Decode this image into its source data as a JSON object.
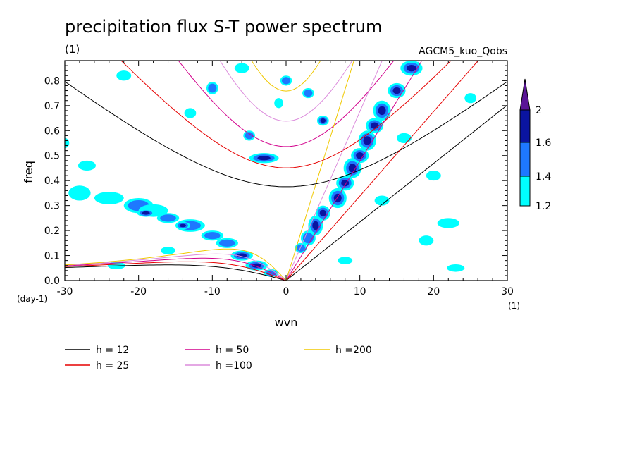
{
  "chart_data": {
    "type": "heatmap",
    "title": "precipitation flux S-T power spectrum",
    "subtitle_left": "(1)",
    "subtitle_right": "AGCM5_kuo_Qobs",
    "xlabel": "wvn",
    "ylabel": "freq",
    "x_unit": "(1)",
    "y_unit": "(day-1)",
    "xlim": [
      -30,
      30
    ],
    "ylim": [
      0,
      0.88
    ],
    "x_ticks": [
      "-30",
      "-20",
      "-10",
      "0",
      "10",
      "20",
      "30"
    ],
    "y_ticks": [
      "0.0",
      "0.1",
      "0.2",
      "0.3",
      "0.4",
      "0.5",
      "0.6",
      "0.7",
      "0.8"
    ],
    "colorbar": {
      "levels": [
        "1.2",
        "1.4",
        "1.6",
        "2"
      ],
      "colors": [
        "#00ffff",
        "#1e78ff",
        "#0a14a0",
        "#5a1496"
      ]
    },
    "series": [
      {
        "name": "h = 12",
        "color": "#000000",
        "h": 12
      },
      {
        "name": "h = 25",
        "color": "#e60000",
        "h": 25
      },
      {
        "name": "h = 50",
        "color": "#d2008c",
        "h": 50
      },
      {
        "name": "h =100",
        "color": "#dc8cdc",
        "h": 100
      },
      {
        "name": "h =200",
        "color": "#f0c800",
        "h": 200
      }
    ],
    "blobs": [
      {
        "x": -28,
        "y": 0.35,
        "w": 1.5,
        "h": 0.03,
        "v": 1.3
      },
      {
        "x": -24,
        "y": 0.33,
        "w": 2.0,
        "h": 0.025,
        "v": 1.3
      },
      {
        "x": -20,
        "y": 0.3,
        "w": 2.0,
        "h": 0.03,
        "v": 1.4
      },
      {
        "x": -18,
        "y": 0.28,
        "w": 2.0,
        "h": 0.025,
        "v": 1.3
      },
      {
        "x": -19,
        "y": 0.27,
        "w": 1.2,
        "h": 0.015,
        "v": 1.6
      },
      {
        "x": -16,
        "y": 0.25,
        "w": 1.5,
        "h": 0.02,
        "v": 1.4
      },
      {
        "x": -13,
        "y": 0.22,
        "w": 2.0,
        "h": 0.025,
        "v": 1.5
      },
      {
        "x": -14,
        "y": 0.22,
        "w": 1.0,
        "h": 0.015,
        "v": 1.8
      },
      {
        "x": -10,
        "y": 0.18,
        "w": 1.5,
        "h": 0.02,
        "v": 1.4
      },
      {
        "x": -8,
        "y": 0.15,
        "w": 1.5,
        "h": 0.02,
        "v": 1.5
      },
      {
        "x": -6,
        "y": 0.1,
        "w": 1.5,
        "h": 0.02,
        "v": 1.6
      },
      {
        "x": -4,
        "y": 0.06,
        "w": 1.5,
        "h": 0.02,
        "v": 1.6
      },
      {
        "x": -2,
        "y": 0.03,
        "w": 1.0,
        "h": 0.015,
        "v": 1.5
      },
      {
        "x": 2,
        "y": 0.13,
        "w": 0.8,
        "h": 0.02,
        "v": 1.5
      },
      {
        "x": 3,
        "y": 0.17,
        "w": 1.0,
        "h": 0.03,
        "v": 1.4
      },
      {
        "x": 4,
        "y": 0.22,
        "w": 1.0,
        "h": 0.04,
        "v": 1.8
      },
      {
        "x": 5,
        "y": 0.27,
        "w": 1.0,
        "h": 0.03,
        "v": 1.6
      },
      {
        "x": 7,
        "y": 0.33,
        "w": 1.2,
        "h": 0.04,
        "v": 1.9
      },
      {
        "x": 8,
        "y": 0.39,
        "w": 1.2,
        "h": 0.03,
        "v": 1.7
      },
      {
        "x": 9,
        "y": 0.45,
        "w": 1.2,
        "h": 0.04,
        "v": 1.9
      },
      {
        "x": 10,
        "y": 0.5,
        "w": 1.2,
        "h": 0.03,
        "v": 1.7
      },
      {
        "x": 11,
        "y": 0.56,
        "w": 1.2,
        "h": 0.04,
        "v": 1.8
      },
      {
        "x": 12,
        "y": 0.62,
        "w": 1.2,
        "h": 0.03,
        "v": 1.6
      },
      {
        "x": 13,
        "y": 0.68,
        "w": 1.2,
        "h": 0.04,
        "v": 1.7
      },
      {
        "x": 15,
        "y": 0.76,
        "w": 1.2,
        "h": 0.03,
        "v": 1.6
      },
      {
        "x": 17,
        "y": 0.85,
        "w": 1.5,
        "h": 0.03,
        "v": 1.6
      },
      {
        "x": -3,
        "y": 0.49,
        "w": 2.0,
        "h": 0.02,
        "v": 1.8
      },
      {
        "x": 5,
        "y": 0.64,
        "w": 0.8,
        "h": 0.02,
        "v": 1.7
      },
      {
        "x": -10,
        "y": 0.77,
        "w": 0.8,
        "h": 0.025,
        "v": 1.5
      },
      {
        "x": -5,
        "y": 0.58,
        "w": 0.8,
        "h": 0.02,
        "v": 1.4
      },
      {
        "x": 0,
        "y": 0.8,
        "w": 0.8,
        "h": 0.02,
        "v": 1.5
      },
      {
        "x": 3,
        "y": 0.75,
        "w": 0.8,
        "h": 0.02,
        "v": 1.4
      },
      {
        "x": -1,
        "y": 0.71,
        "w": 0.6,
        "h": 0.02,
        "v": 1.3
      },
      {
        "x": -27,
        "y": 0.46,
        "w": 1.2,
        "h": 0.02,
        "v": 1.3
      },
      {
        "x": -6,
        "y": 0.85,
        "w": 1.0,
        "h": 0.02,
        "v": 1.3
      },
      {
        "x": 16,
        "y": 0.57,
        "w": 1.0,
        "h": 0.02,
        "v": 1.3
      },
      {
        "x": 22,
        "y": 0.23,
        "w": 1.5,
        "h": 0.02,
        "v": 1.3
      },
      {
        "x": -23,
        "y": 0.06,
        "w": 1.2,
        "h": 0.015,
        "v": 1.3
      },
      {
        "x": 23,
        "y": 0.05,
        "w": 1.2,
        "h": 0.015,
        "v": 1.3
      },
      {
        "x": -16,
        "y": 0.12,
        "w": 1.0,
        "h": 0.015,
        "v": 1.3
      },
      {
        "x": 13,
        "y": 0.32,
        "w": 1.0,
        "h": 0.02,
        "v": 1.3
      },
      {
        "x": 20,
        "y": 0.42,
        "w": 1.0,
        "h": 0.02,
        "v": 1.3
      },
      {
        "x": -22,
        "y": 0.82,
        "w": 1.0,
        "h": 0.02,
        "v": 1.3
      },
      {
        "x": -13,
        "y": 0.67,
        "w": 0.8,
        "h": 0.02,
        "v": 1.3
      },
      {
        "x": 25,
        "y": 0.73,
        "w": 0.8,
        "h": 0.02,
        "v": 1.3
      },
      {
        "x": -30,
        "y": 0.55,
        "w": 0.6,
        "h": 0.02,
        "v": 1.3
      },
      {
        "x": 8,
        "y": 0.08,
        "w": 1.0,
        "h": 0.015,
        "v": 1.3
      },
      {
        "x": 19,
        "y": 0.16,
        "w": 1.0,
        "h": 0.02,
        "v": 1.3
      }
    ]
  }
}
